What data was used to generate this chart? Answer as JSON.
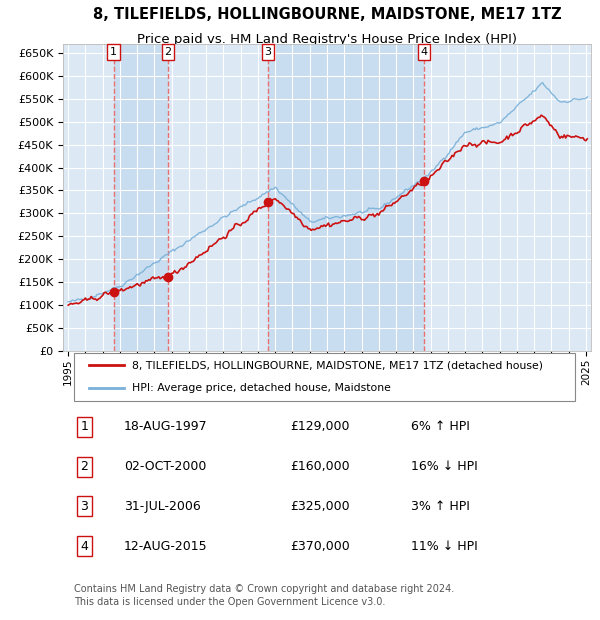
{
  "title": "8, TILEFIELDS, HOLLINGBOURNE, MAIDSTONE, ME17 1TZ",
  "subtitle": "Price paid vs. HM Land Registry's House Price Index (HPI)",
  "title_fontsize": 10.5,
  "subtitle_fontsize": 9.5,
  "plot_bg_color": "#dce9f5",
  "band_color_light": "#dce9f5",
  "band_color_white": "#e8f0f8",
  "grid_color": "#ffffff",
  "ylim": [
    0,
    670000
  ],
  "yticks": [
    0,
    50000,
    100000,
    150000,
    200000,
    250000,
    300000,
    350000,
    400000,
    450000,
    500000,
    550000,
    600000,
    650000
  ],
  "ytick_labels": [
    "£0",
    "£50K",
    "£100K",
    "£150K",
    "£200K",
    "£250K",
    "£300K",
    "£350K",
    "£400K",
    "£450K",
    "£500K",
    "£550K",
    "£600K",
    "£650K"
  ],
  "xlim_start": 1994.7,
  "xlim_end": 2025.3,
  "sale_dates": [
    1997.63,
    2000.79,
    2006.58,
    2015.62
  ],
  "sale_prices": [
    129000,
    160000,
    325000,
    370000
  ],
  "sale_labels": [
    "1",
    "2",
    "3",
    "4"
  ],
  "hpi_line_color": "#7ab0d8",
  "price_line_color": "#cc1111",
  "marker_color": "#cc1111",
  "vline_color": "#e87070",
  "legend_entries": [
    "8, TILEFIELDS, HOLLINGBOURNE, MAIDSTONE, ME17 1TZ (detached house)",
    "HPI: Average price, detached house, Maidstone"
  ],
  "table_rows": [
    {
      "num": "1",
      "date": "18-AUG-1997",
      "price": "£129,000",
      "pct": "6% ↑ HPI"
    },
    {
      "num": "2",
      "date": "02-OCT-2000",
      "price": "£160,000",
      "pct": "16% ↓ HPI"
    },
    {
      "num": "3",
      "date": "31-JUL-2006",
      "price": "£325,000",
      "pct": "3% ↑ HPI"
    },
    {
      "num": "4",
      "date": "12-AUG-2015",
      "price": "£370,000",
      "pct": "11% ↓ HPI"
    }
  ],
  "footer": "Contains HM Land Registry data © Crown copyright and database right 2024.\nThis data is licensed under the Open Government Licence v3.0.",
  "footer_fontsize": 7.0
}
